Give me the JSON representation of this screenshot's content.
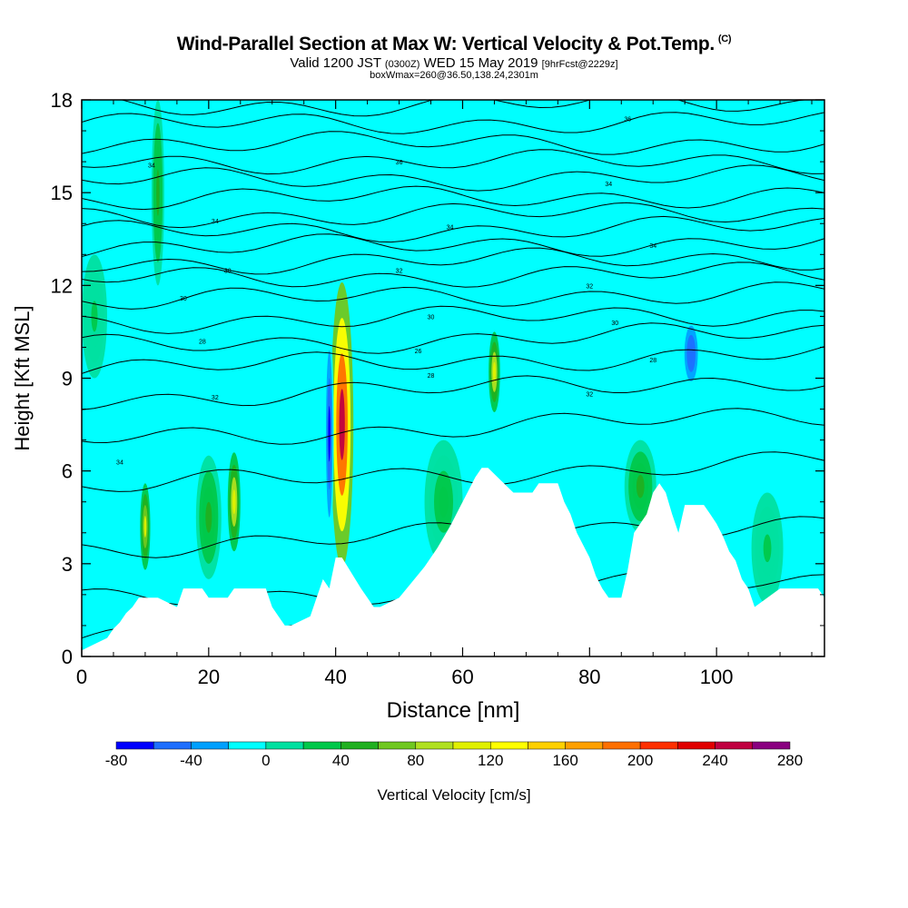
{
  "header": {
    "title": "Wind-Parallel Section at Max W: Vertical Velocity & Pot.Temp.",
    "title_mark": "(C)",
    "valid_prefix": "Valid 1200 JST",
    "valid_utc": "(0300Z)",
    "valid_date": "WED 15 May 2019",
    "forecast": "[9hrFcst@2229z]",
    "box_info": "boxWmax=260@36.50,138.24,2301m"
  },
  "chart_data": {
    "type": "heatmap",
    "xlabel": "Distance [nm]",
    "ylabel": "Height [Kft MSL]",
    "xlim": [
      0,
      117
    ],
    "ylim": [
      0,
      18
    ],
    "x_ticks": [
      0,
      20,
      40,
      60,
      80,
      100
    ],
    "y_ticks": [
      0,
      3,
      6,
      9,
      12,
      15,
      18
    ],
    "colorbar": {
      "label": "Vertical Velocity [cm/s]",
      "levels": [
        -80,
        -60,
        -40,
        -20,
        0,
        20,
        40,
        60,
        80,
        100,
        120,
        140,
        160,
        180,
        200,
        220,
        240,
        260,
        280
      ],
      "colors": [
        "#0000ff",
        "#1e6fff",
        "#00a0ff",
        "#00ffff",
        "#00e0a0",
        "#00c84a",
        "#20b020",
        "#70c820",
        "#b0e020",
        "#e0f000",
        "#ffff00",
        "#ffd000",
        "#ffa000",
        "#ff7000",
        "#ff3000",
        "#e00000",
        "#c00040",
        "#8a0080"
      ],
      "tick_labels": [
        "-80",
        "-40",
        "0",
        "40",
        "80",
        "120",
        "160",
        "200",
        "240",
        "280"
      ]
    },
    "background_color": "#00ffff",
    "terrain": {
      "x": [
        0,
        2,
        4,
        5,
        6,
        7,
        8,
        9,
        12,
        15,
        16,
        19,
        20,
        23,
        24,
        29,
        30,
        31,
        32,
        33,
        36,
        37,
        38,
        39,
        40,
        41,
        44,
        45,
        46,
        47,
        50,
        52,
        54,
        56,
        58,
        60,
        61,
        62,
        63,
        64,
        66,
        68,
        69,
        71,
        72,
        75,
        76,
        77,
        78,
        79,
        80,
        81,
        82,
        83,
        85,
        86,
        87,
        89,
        90,
        91,
        92,
        93,
        94,
        95,
        98,
        99,
        100,
        101,
        102,
        103,
        104,
        105,
        106,
        110,
        116,
        117
      ],
      "height": [
        0.2,
        0.4,
        0.6,
        0.9,
        1.1,
        1.4,
        1.6,
        1.9,
        1.9,
        1.6,
        2.2,
        2.2,
        1.9,
        1.9,
        2.2,
        2.2,
        1.6,
        1.3,
        1.0,
        1.0,
        1.3,
        1.9,
        2.5,
        2.2,
        3.2,
        3.2,
        2.2,
        1.9,
        1.6,
        1.6,
        1.9,
        2.4,
        2.9,
        3.5,
        4.2,
        5.0,
        5.4,
        5.8,
        6.1,
        6.1,
        5.7,
        5.3,
        5.3,
        5.3,
        5.6,
        5.6,
        5.0,
        4.6,
        4.0,
        3.6,
        3.2,
        2.6,
        2.2,
        1.9,
        1.9,
        2.8,
        4.0,
        4.6,
        5.3,
        5.6,
        5.3,
        4.6,
        4.0,
        4.9,
        4.9,
        4.6,
        4.3,
        3.9,
        3.4,
        3.1,
        2.5,
        2.2,
        1.6,
        2.2,
        2.2,
        1.9
      ]
    },
    "velocity_features": [
      {
        "x": 41,
        "y": 7.5,
        "rx": 1.8,
        "ry": 4.6,
        "w": 240
      },
      {
        "x": 39,
        "y": 7.2,
        "rx": 0.7,
        "ry": 3.6,
        "w": -80
      },
      {
        "x": 24,
        "y": 5.0,
        "rx": 1.0,
        "ry": 1.6,
        "w": 110
      },
      {
        "x": 10,
        "y": 4.2,
        "rx": 0.8,
        "ry": 1.4,
        "w": 100
      },
      {
        "x": 65,
        "y": 9.2,
        "rx": 0.9,
        "ry": 1.3,
        "w": 110
      },
      {
        "x": 96,
        "y": 9.8,
        "rx": 1.4,
        "ry": 1.2,
        "w": -60
      },
      {
        "x": 34,
        "y": 4.0,
        "rx": 4.0,
        "ry": 2.8,
        "w": -20
      },
      {
        "x": 48,
        "y": 5.5,
        "rx": 3.0,
        "ry": 2.8,
        "w": -20
      },
      {
        "x": 20,
        "y": 4.5,
        "rx": 2.0,
        "ry": 2.0,
        "w": 40
      },
      {
        "x": 57,
        "y": 5.0,
        "rx": 3.0,
        "ry": 2.0,
        "w": 30
      },
      {
        "x": 88,
        "y": 5.5,
        "rx": 2.5,
        "ry": 1.5,
        "w": 40
      },
      {
        "x": 12,
        "y": 15.0,
        "rx": 1.0,
        "ry": 3.0,
        "w": 40
      },
      {
        "x": 108,
        "y": 3.5,
        "rx": 2.5,
        "ry": 1.8,
        "w": 20
      },
      {
        "x": 2,
        "y": 11.0,
        "rx": 2.0,
        "ry": 2.0,
        "w": 20
      }
    ],
    "theta_contours": {
      "levels": [
        [
          0.6,
          0.9
        ],
        [
          1.8,
          2.5
        ],
        [
          3.5,
          4.4
        ],
        [
          5.5,
          6.3
        ],
        [
          7.0,
          7.8
        ],
        [
          8.3,
          9.0
        ],
        [
          9.3,
          9.8
        ],
        [
          10.0,
          10.5
        ],
        [
          10.8,
          11.1
        ],
        [
          11.5,
          11.8
        ],
        [
          12.2,
          12.4
        ],
        [
          12.7,
          12.9
        ],
        [
          13.2,
          13.4
        ],
        [
          13.7,
          13.9
        ],
        [
          14.2,
          14.4
        ],
        [
          14.8,
          14.9
        ],
        [
          15.4,
          15.5
        ],
        [
          16.0,
          16.0
        ],
        [
          16.6,
          16.6
        ],
        [
          17.2,
          17.3
        ],
        [
          17.8,
          17.9
        ]
      ],
      "labels": [
        {
          "x": 6,
          "y": 6.3,
          "text": "34"
        },
        {
          "x": 21,
          "y": 8.4,
          "text": "32"
        },
        {
          "x": 19,
          "y": 10.2,
          "text": "28"
        },
        {
          "x": 16,
          "y": 11.6,
          "text": "30"
        },
        {
          "x": 23,
          "y": 12.5,
          "text": "30"
        },
        {
          "x": 21,
          "y": 14.1,
          "text": "34"
        },
        {
          "x": 11,
          "y": 15.9,
          "text": "34"
        },
        {
          "x": 50,
          "y": 12.5,
          "text": "32"
        },
        {
          "x": 55,
          "y": 11.0,
          "text": "30"
        },
        {
          "x": 53,
          "y": 9.9,
          "text": "26"
        },
        {
          "x": 55,
          "y": 9.1,
          "text": "28"
        },
        {
          "x": 58,
          "y": 13.9,
          "text": "34"
        },
        {
          "x": 50,
          "y": 16.0,
          "text": "36"
        },
        {
          "x": 80,
          "y": 8.5,
          "text": "32"
        },
        {
          "x": 84,
          "y": 10.8,
          "text": "30"
        },
        {
          "x": 80,
          "y": 12.0,
          "text": "32"
        },
        {
          "x": 90,
          "y": 13.3,
          "text": "34"
        },
        {
          "x": 83,
          "y": 15.3,
          "text": "34"
        },
        {
          "x": 86,
          "y": 17.4,
          "text": "36"
        },
        {
          "x": 90,
          "y": 9.6,
          "text": "28"
        }
      ]
    }
  }
}
